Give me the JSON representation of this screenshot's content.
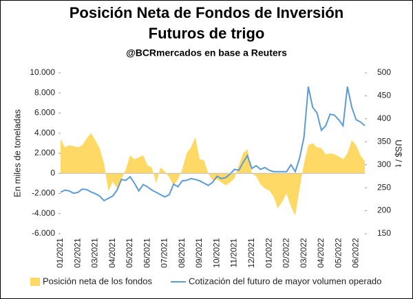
{
  "chart_data": {
    "type": "area-line",
    "title": "Posición Neta de Fondos de Inversión",
    "subtitle": "Futuros de trigo",
    "source": "@BCRmercados en base a Reuters",
    "y_label": "En miles de toneladas",
    "y2_label": "US$ / t",
    "categories": [
      "01/2021",
      null,
      null,
      null,
      "02/2021",
      null,
      null,
      null,
      "03/2021",
      null,
      null,
      null,
      "04/2021",
      null,
      null,
      null,
      "05/2021",
      null,
      null,
      null,
      "06/2021",
      null,
      null,
      null,
      "07/2021",
      null,
      null,
      null,
      "08/2021",
      null,
      null,
      null,
      "09/2021",
      null,
      null,
      null,
      "10/2021",
      null,
      null,
      null,
      "11/2021",
      null,
      null,
      null,
      "12/2021",
      null,
      null,
      null,
      "01/2022",
      null,
      null,
      null,
      "02/2022",
      null,
      null,
      null,
      "03/2022",
      null,
      null,
      null,
      "04/2022",
      null,
      null,
      null,
      "05/2022",
      null,
      null,
      null,
      "06/2022",
      null,
      null
    ],
    "series": [
      {
        "name": "Posición neta de los fondos",
        "color": "#ffd966",
        "axis": "y",
        "values": [
          3400,
          2600,
          2800,
          2700,
          2600,
          2800,
          3500,
          4000,
          3300,
          2500,
          1000,
          -1800,
          -800,
          -1500,
          -600,
          400,
          1800,
          1400,
          1600,
          1800,
          800,
          600,
          -1000,
          600,
          200,
          -400,
          -1200,
          -600,
          400,
          2000,
          2600,
          3600,
          1400,
          1300,
          0,
          -700,
          -600,
          -900,
          -1200,
          -900,
          -500,
          800,
          2000,
          2400,
          0,
          -300,
          -1100,
          -1500,
          -1700,
          -2300,
          -3500,
          -2800,
          -2000,
          -3300,
          -4200,
          -1500,
          1000,
          2800,
          3000,
          2600,
          2500,
          1900,
          2000,
          1900,
          1700,
          1400,
          2000,
          3300,
          2800,
          1800,
          1200
        ]
      },
      {
        "name": "Cotización del futuro de mayor volumen operado",
        "color": "#5b9bd5",
        "axis": "y2",
        "values": [
          240,
          245,
          243,
          238,
          240,
          247,
          246,
          241,
          237,
          232,
          222,
          227,
          232,
          245,
          268,
          266,
          274,
          260,
          243,
          257,
          252,
          245,
          240,
          235,
          230,
          235,
          258,
          252,
          265,
          266,
          270,
          268,
          265,
          260,
          255,
          262,
          275,
          270,
          272,
          280,
          290,
          288,
          305,
          320,
          292,
          298,
          290,
          294,
          288,
          285,
          285,
          285,
          285,
          300,
          285,
          315,
          360,
          470,
          425,
          413,
          375,
          385,
          410,
          408,
          398,
          385,
          470,
          425,
          398,
          393,
          385
        ]
      }
    ],
    "ylim": [
      -6000,
      10000
    ],
    "yticks": [
      {
        "value": -6000,
        "label": "-6.000"
      },
      {
        "value": -4000,
        "label": "-4.000"
      },
      {
        "value": -2000,
        "label": "-2.000"
      },
      0,
      {
        "value": 2000,
        "label": "2.000"
      },
      {
        "value": 4000,
        "label": "4.000"
      },
      {
        "value": 6000,
        "label": "6.000"
      },
      {
        "value": 8000,
        "label": "8.000"
      },
      {
        "value": 10000,
        "label": "10.000"
      }
    ],
    "y2lim": [
      150,
      500
    ],
    "y2ticks": [
      150,
      200,
      250,
      300,
      350,
      400,
      450,
      500
    ],
    "legend": "bottom"
  }
}
